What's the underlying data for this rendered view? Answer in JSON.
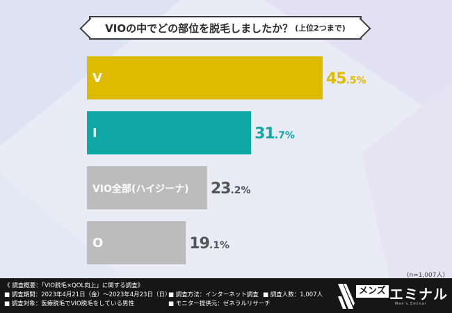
{
  "title": {
    "main": "VIOの中でどの部位を脱毛しましたか？",
    "sub": "(上位2つまで)"
  },
  "chart_data": {
    "type": "bar",
    "orientation": "horizontal",
    "categories": [
      "V",
      "I",
      "VIO全部(ハイジーナ)",
      "O"
    ],
    "values": [
      45.5,
      31.7,
      23.2,
      19.1
    ],
    "unit": "%",
    "colors": [
      "#dfbb00",
      "#0fa7a3",
      "#bcbcbc",
      "#bcbcbc"
    ],
    "value_colors": [
      "#dfbb00",
      "#0fa7a3",
      "#555555",
      "#555555"
    ],
    "xlim": [
      0,
      50
    ],
    "grid": false,
    "legend": "none"
  },
  "sample_note": "(n=1,007人)",
  "footer": {
    "heading": "《 調査概要：「VIO脱毛×QOL向上」に関する調査》",
    "period": "■ 調査期間：2023年4月21日（金）〜2023年4月23日（日）",
    "target": "■ 調査対象：医療脱毛でVIO脱毛をしている男性",
    "method": "■ 調査方法：インターネット調査",
    "provider": "■ モニター提供元：ゼネラルリサーチ",
    "count": "■ 調査人数：1,007人"
  },
  "logo": {
    "brand": "メンズ",
    "name": "エミナル",
    "tagline": "Men's Eminal"
  }
}
